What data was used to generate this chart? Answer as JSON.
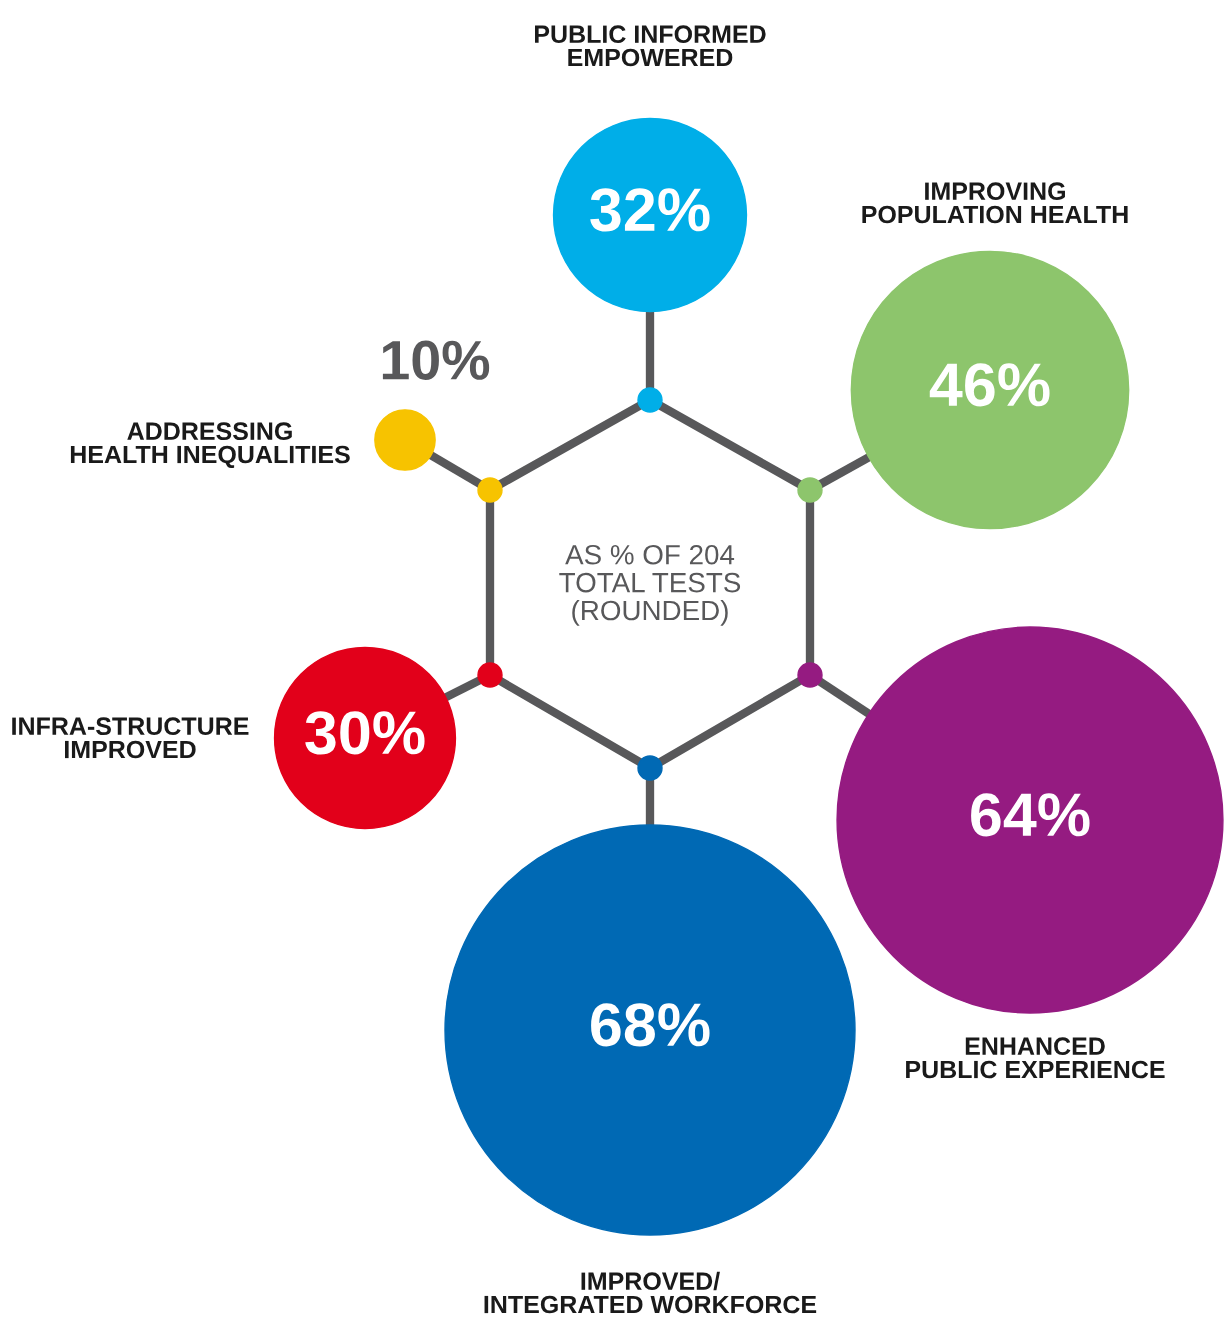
{
  "chart_data": {
    "type": "other",
    "categories": [
      "PUBLIC INFORMED\nEMPOWERED",
      "IMPROVING\nPOPULATION HEALTH",
      "ENHANCED\nPUBLIC EXPERIENCE",
      "IMPROVED/\nINTEGRATED WORKFORCE",
      "INFRA-STRUCTURE\nIMPROVED",
      "ADDRESSING\nHEALTH INEQUALITIES"
    ],
    "values": [
      32,
      46,
      64,
      68,
      30,
      10
    ],
    "value_labels": [
      "32%",
      "46%",
      "64%",
      "68%",
      "30%",
      "10%"
    ],
    "colors": [
      "#00aee8",
      "#8dc56c",
      "#951b81",
      "#0069b4",
      "#e2001a",
      "#f7c300"
    ],
    "annotations": [
      "AS % OF 204\nTOTAL TESTS\n(ROUNDED)"
    ]
  }
}
